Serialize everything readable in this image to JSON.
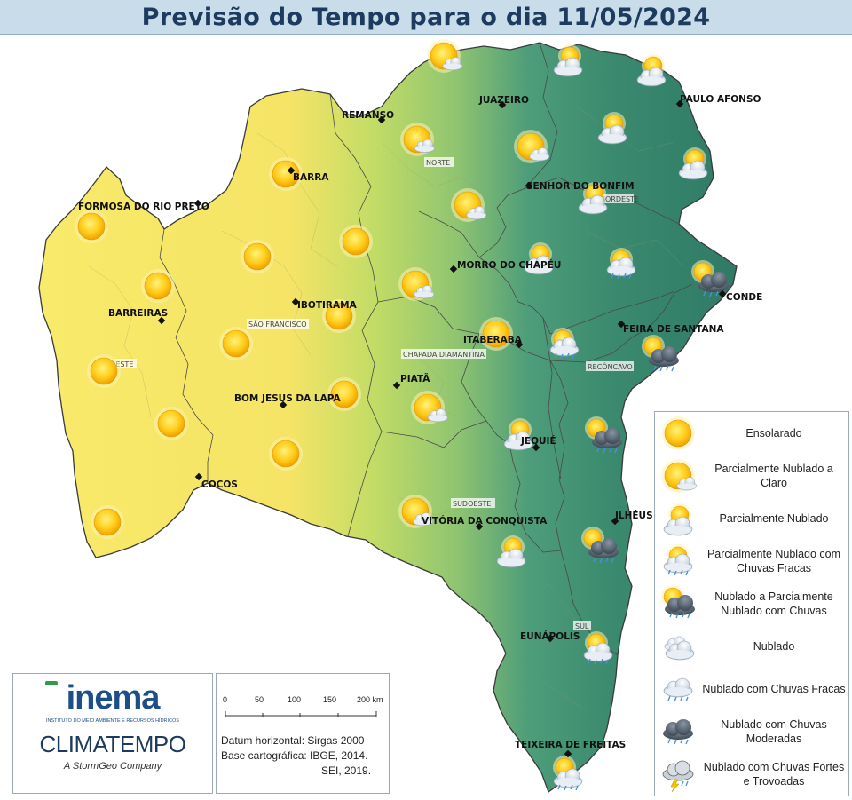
{
  "title": "Previsão do Tempo para o dia 11/05/2024",
  "cities": [
    {
      "name": "REMANSO"
    },
    {
      "name": "JUAZEIRO"
    },
    {
      "name": "PAULO AFONSO"
    },
    {
      "name": "BARRA"
    },
    {
      "name": "SENHOR DO BONFIM"
    },
    {
      "name": "FORMOSA DO RIO PRETO"
    },
    {
      "name": "MORRO DO CHAPÉU"
    },
    {
      "name": "CONDE"
    },
    {
      "name": "IBOTIRAMA"
    },
    {
      "name": "BARREIRAS"
    },
    {
      "name": "FEIRA DE SANTANA"
    },
    {
      "name": "ITABERABA"
    },
    {
      "name": "PIATÃ"
    },
    {
      "name": "BOM JESUS DA LAPA"
    },
    {
      "name": "JEQUIÉ"
    },
    {
      "name": "COCOS"
    },
    {
      "name": "VITÓRIA DA CONQUISTA"
    },
    {
      "name": "ILHÉUS"
    },
    {
      "name": "EUNÁPOLIS"
    },
    {
      "name": "TEIXEIRA DE FREITAS"
    }
  ],
  "regions": [
    "NORTE",
    "NORDESTE",
    "SÃO FRANCISCO",
    "OESTE",
    "CHAPADA DIAMANTINA",
    "RECÔNCAVO",
    "SUDOESTE",
    "SUL"
  ],
  "legend": [
    {
      "icon": "sunny-icon",
      "label": "Ensolarado"
    },
    {
      "icon": "partly-cloudy-clear-icon",
      "label": "Parcialmente Nublado a Claro"
    },
    {
      "icon": "partly-cloudy-icon",
      "label": "Parcialmente Nublado"
    },
    {
      "icon": "partly-cloudy-light-rain-icon",
      "label": "Parcialmente Nublado com Chuvas Fracas"
    },
    {
      "icon": "cloudy-partly-rain-icon",
      "label": "Nublado a Parcialmente Nublado com Chuvas"
    },
    {
      "icon": "cloudy-icon",
      "label": "Nublado"
    },
    {
      "icon": "cloudy-light-rain-icon",
      "label": "Nublado com Chuvas Fracas"
    },
    {
      "icon": "cloudy-moderate-rain-icon",
      "label": "Nublado com Chuvas Moderadas"
    },
    {
      "icon": "thunderstorm-icon",
      "label": "Nublado com Chuvas Fortes e Trovoadas"
    }
  ],
  "logos": {
    "inema": "inema",
    "inema_sub": "INSTITUTO DO MEIO AMBIENTE E RECURSOS HÍDRICOS",
    "climatempo": "CLIMATEMPO",
    "climatempo_sub": "A StormGeo Company"
  },
  "scale": {
    "ticks": [
      "0",
      "50",
      "100",
      "150",
      "200 km"
    ],
    "datum_1": "Datum horizontal: Sirgas 2000",
    "datum_2": "Base cartográfica: IBGE, 2014.",
    "datum_3": "SEI, 2019."
  },
  "colors": {
    "dry": "#f7e96a",
    "mid": "#b8d96a",
    "humid": "#4f9d7a",
    "coast": "#2e7d6b"
  }
}
